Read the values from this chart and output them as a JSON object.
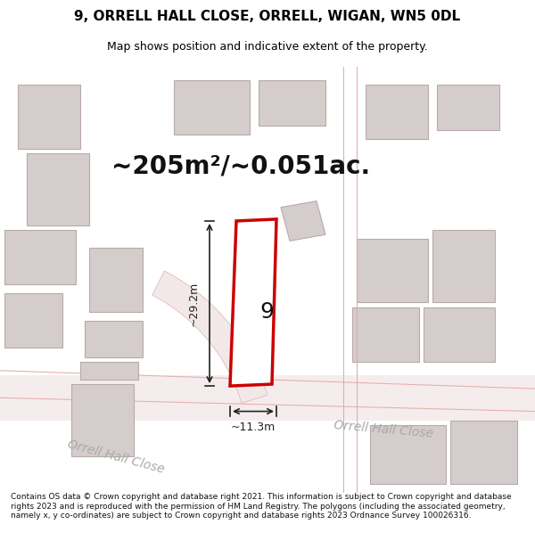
{
  "title": "9, ORRELL HALL CLOSE, ORRELL, WIGAN, WN5 0DL",
  "subtitle": "Map shows position and indicative extent of the property.",
  "area_text": "~205m²/~0.051ac.",
  "dim_height": "~29.2m",
  "dim_width": "~11.3m",
  "property_number": "9",
  "road_label1": "Orrell Hall Close",
  "road_label2": "Orrell Hall Close",
  "footer": "Contains OS data © Crown copyright and database right 2021. This information is subject to Crown copyright and database rights 2023 and is reproduced with the permission of HM Land Registry. The polygons (including the associated geometry, namely x, y co-ordinates) are subject to Crown copyright and database rights 2023 Ordnance Survey 100026316.",
  "background_color": "#ffffff",
  "map_background": "#f5f0f0",
  "building_color": "#d8d0d0",
  "building_edge_color": "#c0b0b0",
  "road_color": "#ffffff",
  "road_edge_color": "#e8c0c0",
  "plot_color": "#ffffff",
  "plot_edge_color": "#cc0000",
  "plot_edge_width": 2.5,
  "dim_color": "#222222",
  "title_fontsize": 11,
  "subtitle_fontsize": 9,
  "area_fontsize": 20,
  "number_fontsize": 18,
  "dim_fontsize": 9,
  "road_label_fontsize": 10,
  "footer_fontsize": 6.5
}
